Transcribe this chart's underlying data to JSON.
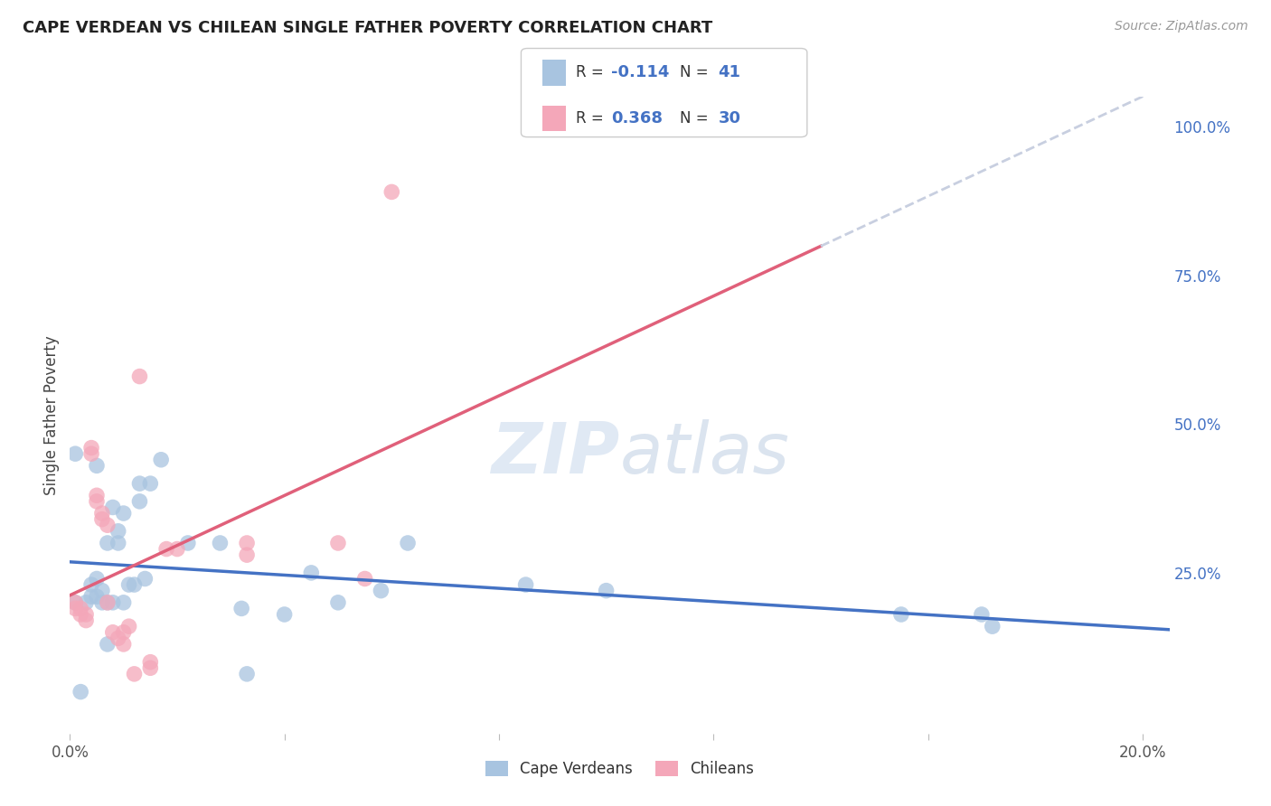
{
  "title": "CAPE VERDEAN VS CHILEAN SINGLE FATHER POVERTY CORRELATION CHART",
  "source": "Source: ZipAtlas.com",
  "ylabel": "Single Father Poverty",
  "legend_label1": "Cape Verdeans",
  "legend_label2": "Chileans",
  "r1": -0.114,
  "n1": 41,
  "r2": 0.368,
  "n2": 30,
  "color_blue": "#a8c4e0",
  "color_pink": "#f4a7b9",
  "color_blue_text": "#4472c4",
  "trendline1_color": "#4472c4",
  "trendline2_color": "#e0607a",
  "trendline_ext_color": "#c8cfe0",
  "background_color": "#ffffff",
  "grid_color": "#dde0ea",
  "right_axis_color": "#4472c4",
  "xlim": [
    0.0,
    0.205
  ],
  "ylim": [
    -0.02,
    1.05
  ],
  "yticks_right": [
    0.0,
    0.25,
    0.5,
    0.75,
    1.0
  ],
  "ytick_labels_right": [
    "",
    "25.0%",
    "50.0%",
    "75.0%",
    "100.0%"
  ],
  "cape_verdean_x": [
    0.001,
    0.001,
    0.002,
    0.003,
    0.004,
    0.004,
    0.005,
    0.005,
    0.005,
    0.006,
    0.006,
    0.007,
    0.007,
    0.007,
    0.008,
    0.008,
    0.009,
    0.009,
    0.01,
    0.01,
    0.011,
    0.012,
    0.013,
    0.013,
    0.014,
    0.015,
    0.017,
    0.022,
    0.028,
    0.032,
    0.033,
    0.04,
    0.045,
    0.05,
    0.058,
    0.063,
    0.085,
    0.1,
    0.155,
    0.17,
    0.172
  ],
  "cape_verdean_y": [
    0.2,
    0.45,
    0.05,
    0.2,
    0.23,
    0.21,
    0.21,
    0.24,
    0.43,
    0.2,
    0.22,
    0.2,
    0.13,
    0.3,
    0.2,
    0.36,
    0.3,
    0.32,
    0.2,
    0.35,
    0.23,
    0.23,
    0.4,
    0.37,
    0.24,
    0.4,
    0.44,
    0.3,
    0.3,
    0.19,
    0.08,
    0.18,
    0.25,
    0.2,
    0.22,
    0.3,
    0.23,
    0.22,
    0.18,
    0.18,
    0.16
  ],
  "chilean_x": [
    0.001,
    0.001,
    0.002,
    0.002,
    0.003,
    0.003,
    0.004,
    0.004,
    0.005,
    0.005,
    0.006,
    0.006,
    0.007,
    0.007,
    0.008,
    0.009,
    0.01,
    0.01,
    0.011,
    0.012,
    0.013,
    0.015,
    0.015,
    0.018,
    0.02,
    0.033,
    0.033,
    0.05,
    0.055,
    0.06
  ],
  "chilean_y": [
    0.2,
    0.19,
    0.19,
    0.18,
    0.18,
    0.17,
    0.45,
    0.46,
    0.37,
    0.38,
    0.35,
    0.34,
    0.33,
    0.2,
    0.15,
    0.14,
    0.15,
    0.13,
    0.16,
    0.08,
    0.58,
    0.1,
    0.09,
    0.29,
    0.29,
    0.3,
    0.28,
    0.3,
    0.24,
    0.89
  ],
  "trendline2_xstart": 0.0,
  "trendline2_xsolid_end": 0.14,
  "trendline2_xdash_end": 0.205,
  "trendline1_xstart": 0.0,
  "trendline1_xend": 0.205
}
